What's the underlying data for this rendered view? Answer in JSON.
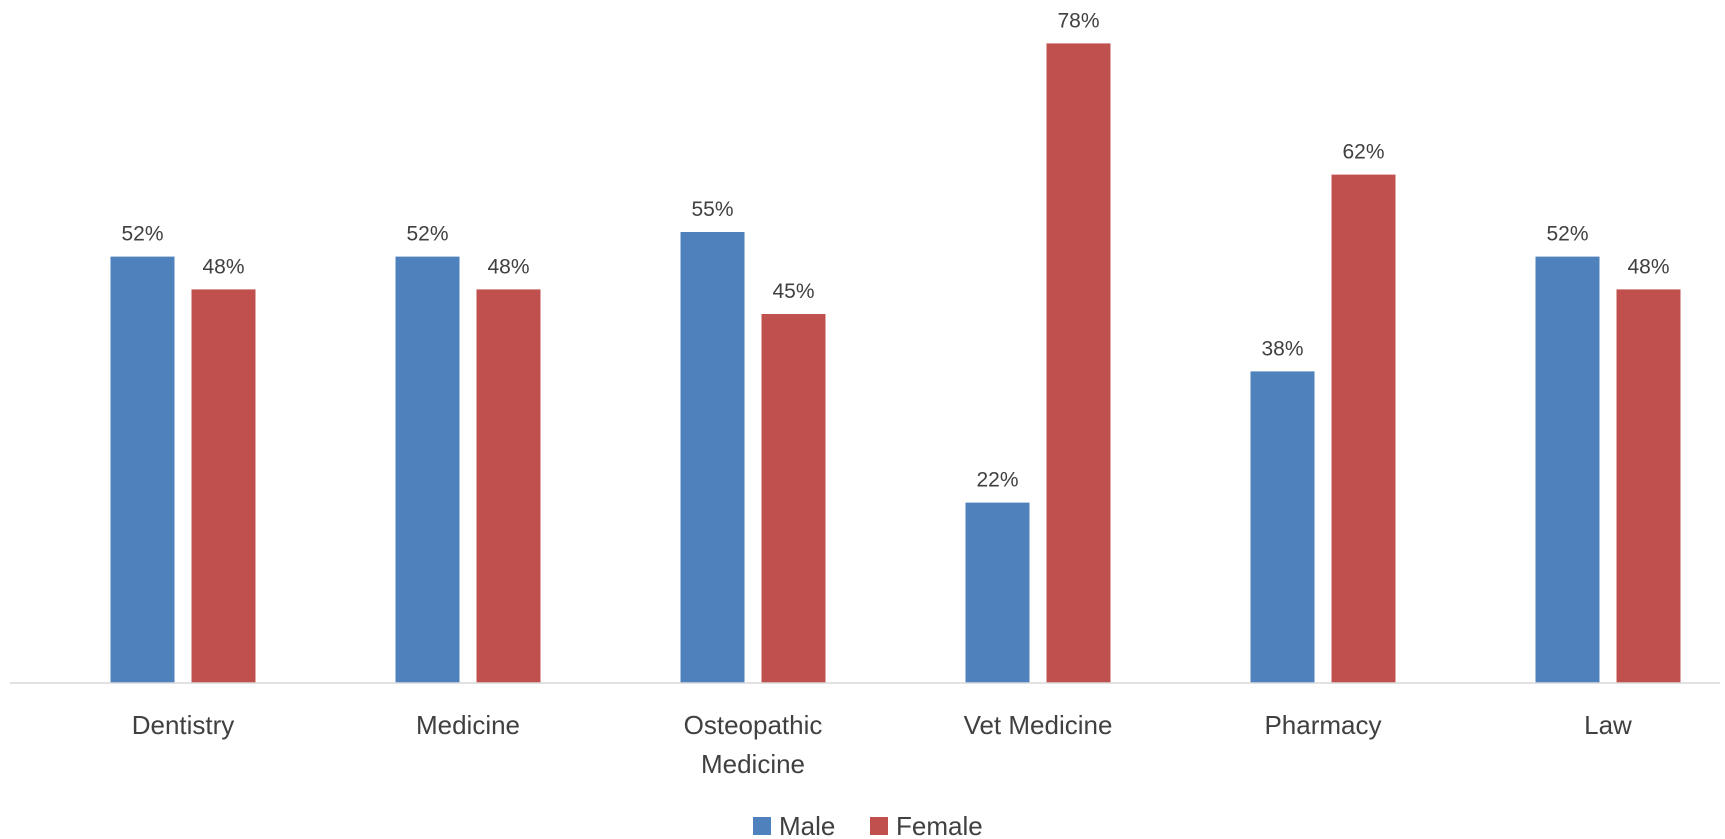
{
  "chart_data": {
    "type": "bar",
    "categories": [
      [
        "Dentistry"
      ],
      [
        "Medicine"
      ],
      [
        "Osteopathic",
        "Medicine"
      ],
      [
        "Vet Medicine"
      ],
      [
        "Pharmacy"
      ],
      [
        "Law"
      ]
    ],
    "series": [
      {
        "name": "Male",
        "color": "#4F81BD",
        "values": [
          52,
          52,
          55,
          22,
          38,
          52
        ],
        "labels": [
          "52%",
          "52%",
          "55%",
          "22%",
          "38%",
          "52%"
        ]
      },
      {
        "name": "Female",
        "color": "#C0504D",
        "values": [
          48,
          48,
          45,
          78,
          62,
          48
        ],
        "labels": [
          "48%",
          "48%",
          "45%",
          "78%",
          "62%",
          "48%"
        ]
      }
    ],
    "ylim": [
      0,
      80
    ],
    "grid": false,
    "legend_position": "bottom",
    "axis_color": "#D9D9D9"
  }
}
